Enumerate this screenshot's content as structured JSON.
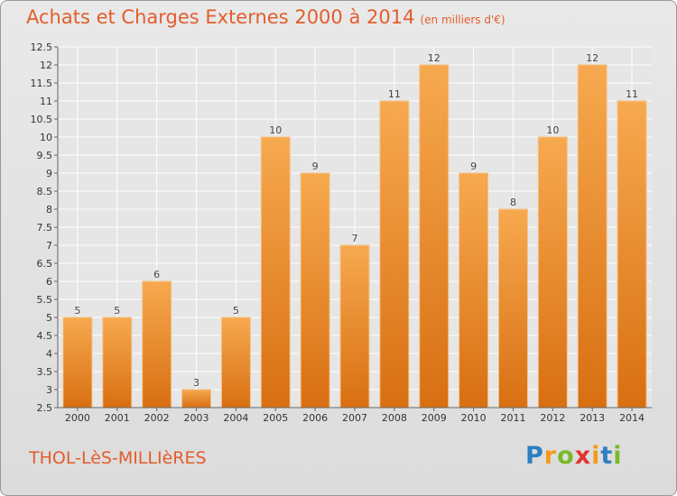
{
  "header": {
    "title": "Achats et Charges Externes 2000 à 2014",
    "subtitle": "(en milliers d'€)"
  },
  "footer": {
    "commune": "THOL-LèS-MILLIèRES",
    "logo_letters": [
      "P",
      "r",
      "o",
      "x",
      "i",
      "t",
      "i"
    ],
    "logo_colors": [
      "#2d7fc1",
      "#f39a1e",
      "#7ab929",
      "#e3342f",
      "#f39a1e",
      "#2d7fc1",
      "#7ab929"
    ]
  },
  "chart_data": {
    "type": "bar",
    "title": "Achats et Charges Externes 2000 à 2014",
    "categories": [
      "2000",
      "2001",
      "2002",
      "2003",
      "2004",
      "2005",
      "2006",
      "2007",
      "2008",
      "2009",
      "2010",
      "2011",
      "2012",
      "2013",
      "2014"
    ],
    "values": [
      5,
      5,
      6,
      3,
      5,
      10,
      9,
      7,
      11,
      12,
      9,
      8,
      10,
      12,
      11
    ],
    "value_labels": [
      "5",
      "5",
      "6",
      "3",
      "5",
      "10",
      "9",
      "7",
      "11",
      "12",
      "9",
      "8",
      "10",
      "12",
      "11"
    ],
    "ylim": [
      2.5,
      12.5
    ],
    "yticks": [
      2.5,
      3,
      3.5,
      4,
      4.5,
      5,
      5.5,
      6,
      6.5,
      7,
      7.5,
      8,
      8.5,
      9,
      9.5,
      10,
      10.5,
      11,
      11.5,
      12,
      12.5
    ],
    "ytick_labels": [
      "2.5",
      "3",
      "3.5",
      "4",
      "4.5",
      "5",
      "5.5",
      "6",
      "6.5",
      "7",
      "7.5",
      "8",
      "8.5",
      "9",
      "9.5",
      "10",
      "10.5",
      "11",
      "11.5",
      "12",
      "12.5"
    ],
    "bar_color": "#f0922e",
    "grid": true
  }
}
